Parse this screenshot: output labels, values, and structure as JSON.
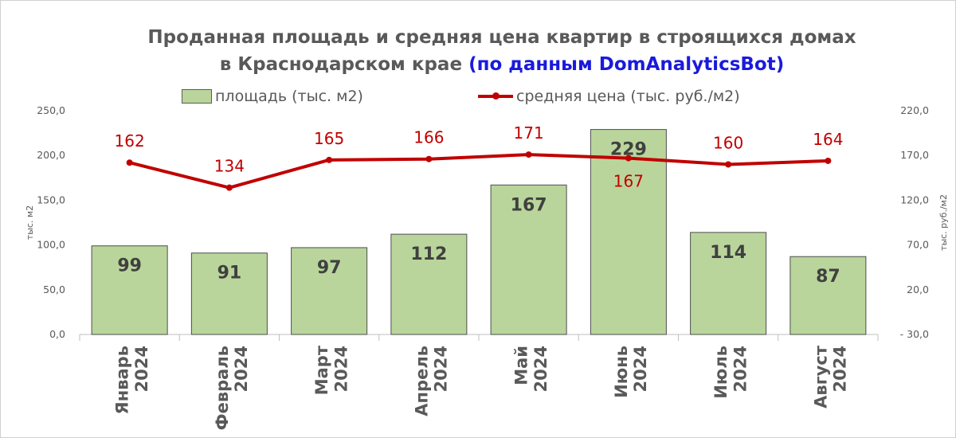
{
  "title": {
    "line1": "Проданная площадь и средняя цена квартир в строящихся домах",
    "line2": "в Краснодарском крае ",
    "line2_accent": "(по данным DomAnalyticsBot)"
  },
  "legend": {
    "bars_label": "площадь (тыс. м2)",
    "line_label": "средняя цена (тыс. руб./м2)"
  },
  "colors": {
    "bar_fill": "#b9d59b",
    "bar_stroke": "#4d4d4d",
    "line": "#c00000",
    "title": "#595959",
    "title_accent": "#1a1adc"
  },
  "chart_data": {
    "type": "bar+line",
    "categories": [
      [
        "Январь",
        "2024"
      ],
      [
        "Февраль",
        "2024"
      ],
      [
        "Март",
        "2024"
      ],
      [
        "Апрель",
        "2024"
      ],
      [
        "Май",
        "2024"
      ],
      [
        "Июнь",
        "2024"
      ],
      [
        "Июль",
        "2024"
      ],
      [
        "Август",
        "2024"
      ]
    ],
    "series": [
      {
        "name": "площадь (тыс. м2)",
        "type": "bar",
        "axis": "left",
        "values": [
          99,
          91,
          97,
          112,
          167,
          229,
          114,
          87
        ]
      },
      {
        "name": "средняя цена (тыс. руб./м2)",
        "type": "line",
        "axis": "right",
        "values": [
          162,
          134,
          165,
          166,
          171,
          167,
          160,
          164
        ]
      }
    ],
    "ylabel_left": "тыс. м2",
    "ylabel_right": "тыс. руб./м2",
    "ylim_left": [
      0,
      250
    ],
    "ylim_right": [
      -30,
      220
    ],
    "yticks_left": [
      "0,0",
      "50,0",
      "100,0",
      "150,0",
      "200,0",
      "250,0"
    ],
    "yticks_right": [
      "- 30,0",
      "20,0",
      "70,0",
      "120,0",
      "170,0",
      "220,0"
    ],
    "grid": false,
    "legend_position": "top"
  }
}
